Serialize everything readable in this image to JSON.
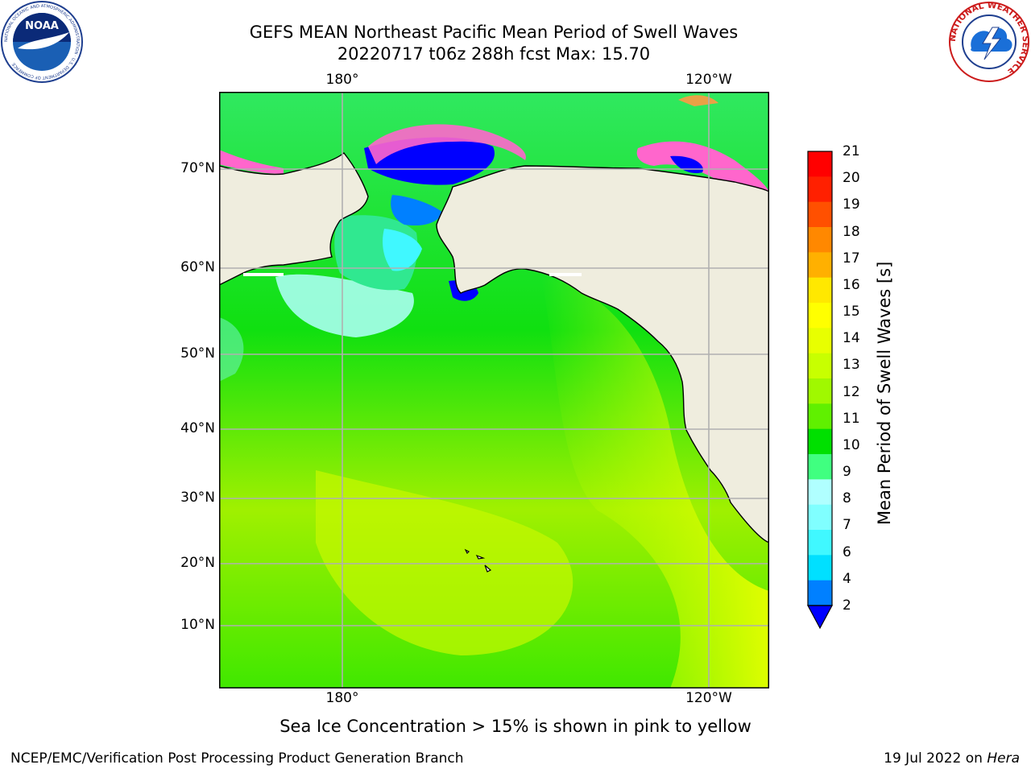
{
  "header": {
    "title_line1": "GEFS MEAN Northeast Pacific Mean Period of Swell Waves",
    "title_line2": "20220717 t06z 288h fcst   Max: 15.70"
  },
  "logos": {
    "noaa_text": "NOAA",
    "noaa_ring_text": "NATIONAL OCEANIC AND ATMOSPHERIC ADMINISTRATION · U.S. DEPARTMENT OF COMMERCE",
    "nws_ring_text": "NATIONAL WEATHER SERVICE"
  },
  "map": {
    "lon_labels_top": [
      "180°",
      "120°W"
    ],
    "lon_labels_bottom": [
      "180°",
      "120°W"
    ],
    "lat_labels": [
      "70°N",
      "60°N",
      "50°N",
      "40°N",
      "30°N",
      "20°N",
      "10°N"
    ],
    "colors": {
      "land": "#efedde",
      "grid": "#b0b0b0",
      "coast": "#000000",
      "sea_ice": "#ff66cc"
    }
  },
  "colorbar": {
    "title": "Mean Period of Swell Waves [s]",
    "tick_labels": [
      "2",
      "4",
      "6",
      "7",
      "8",
      "9",
      "10",
      "11",
      "12",
      "13",
      "14",
      "15",
      "16",
      "17",
      "18",
      "19",
      "20",
      "21"
    ],
    "colors": [
      "#0080ff",
      "#00e0ff",
      "#40f8ff",
      "#80ffff",
      "#b0ffff",
      "#40ff80",
      "#00e000",
      "#60f000",
      "#a0f800",
      "#c8ff00",
      "#e8ff00",
      "#ffff00",
      "#ffe800",
      "#ffb000",
      "#ff8800",
      "#ff5000",
      "#ff2000",
      "#ff0000"
    ],
    "underflow_color": "#0000ff"
  },
  "caption": "Sea Ice Concentration > 15% is shown in pink to yellow",
  "footer": {
    "left": "NCEP/EMC/Verification Post Processing Product Generation Branch",
    "right_prefix": "19 Jul 2022 on ",
    "right_host": "Hera"
  }
}
